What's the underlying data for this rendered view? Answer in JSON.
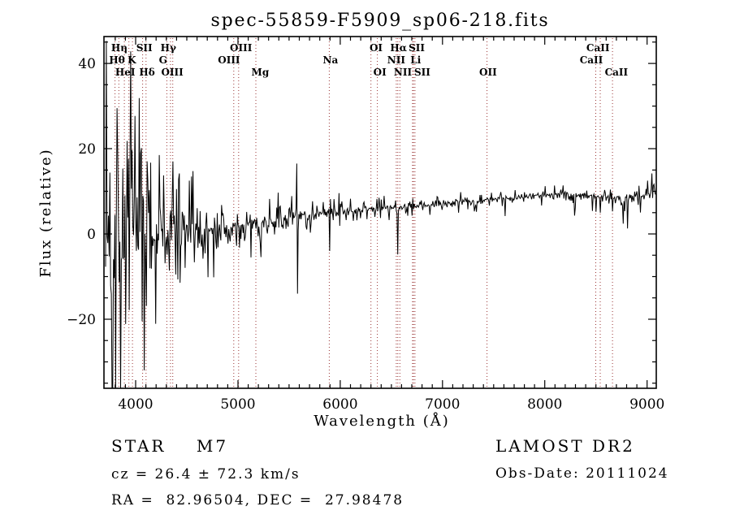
{
  "title": "spec-55859-F5909_sp06-218.fits",
  "footer": {
    "class_label": "STAR    M7",
    "cz": "cz = 26.4 ± 72.3 km/s",
    "coords": "RA =  82.96504, DEC =  27.98478",
    "survey": "LAMOST DR2",
    "obs_date": "Obs-Date: 20111024"
  },
  "colors": {
    "foreground": "#000000",
    "background": "#ffffff",
    "spectral_marker": "#993333"
  },
  "chart_data": {
    "type": "line",
    "title": "spec-55859-F5909_sp06-218.fits",
    "xlabel": "Wavelength (Å)",
    "ylabel": "Flux (relative)",
    "xlim": [
      3690,
      9090
    ],
    "ylim": [
      -36.2,
      46.3
    ],
    "xticks": [
      4000,
      5000,
      6000,
      7000,
      8000,
      9000
    ],
    "xtick_minor_step": 100,
    "yticks": [
      -20,
      0,
      20,
      40
    ],
    "ytick_minor_step": 5,
    "grid": false,
    "legend": null,
    "line_color": "#000000",
    "spectral_line_markers": [
      3798,
      3835,
      3889,
      3934,
      3969,
      4068,
      4101,
      4305,
      4340,
      4363,
      4959,
      5007,
      5175,
      5893,
      6300,
      6363,
      6548,
      6563,
      6583,
      6707,
      6716,
      6731,
      7435,
      8498,
      8542,
      8662
    ],
    "spectral_line_labels": [
      {
        "text": "Hη",
        "row": 1,
        "wavelength": 3840
      },
      {
        "text": "SII",
        "row": 1,
        "wavelength": 4085
      },
      {
        "text": "Hγ",
        "row": 1,
        "wavelength": 4320
      },
      {
        "text": "OIII",
        "row": 1,
        "wavelength": 5030
      },
      {
        "text": "OI",
        "row": 1,
        "wavelength": 6350
      },
      {
        "text": "Hα",
        "row": 1,
        "wavelength": 6570
      },
      {
        "text": "SII",
        "row": 1,
        "wavelength": 6748
      },
      {
        "text": "CaII",
        "row": 1,
        "wavelength": 8520
      },
      {
        "text": "Hθ",
        "row": 2,
        "wavelength": 3818
      },
      {
        "text": "K",
        "row": 2,
        "wavelength": 3962
      },
      {
        "text": "G",
        "row": 2,
        "wavelength": 4268
      },
      {
        "text": "OIII",
        "row": 2,
        "wavelength": 4912
      },
      {
        "text": "Na",
        "row": 2,
        "wavelength": 5905
      },
      {
        "text": "NII",
        "row": 2,
        "wavelength": 6548
      },
      {
        "text": "Li",
        "row": 2,
        "wavelength": 6738
      },
      {
        "text": "CaII",
        "row": 2,
        "wavelength": 8455
      },
      {
        "text": "HeI",
        "row": 3,
        "wavelength": 3898
      },
      {
        "text": "Hδ",
        "row": 3,
        "wavelength": 4112
      },
      {
        "text": "OIII",
        "row": 3,
        "wavelength": 4358
      },
      {
        "text": "Mg",
        "row": 3,
        "wavelength": 5218
      },
      {
        "text": "OI",
        "row": 3,
        "wavelength": 6388
      },
      {
        "text": "NII",
        "row": 3,
        "wavelength": 6612
      },
      {
        "text": "SII",
        "row": 3,
        "wavelength": 6802
      },
      {
        "text": "OII",
        "row": 3,
        "wavelength": 7445
      },
      {
        "text": "CaII",
        "row": 3,
        "wavelength": 8700
      }
    ],
    "spectrum": {
      "seed": 7,
      "step": 7,
      "x_start": 3706,
      "x_end": 9085,
      "baseline": [
        [
          3706,
          -1.5
        ],
        [
          3800,
          -1.0
        ],
        [
          3900,
          -1.0
        ],
        [
          4000,
          -0.5
        ],
        [
          4150,
          0.0
        ],
        [
          4300,
          0.2
        ],
        [
          4500,
          0.4
        ],
        [
          4700,
          0.6
        ],
        [
          4900,
          1.0
        ],
        [
          5100,
          1.8
        ],
        [
          5300,
          2.8
        ],
        [
          5500,
          3.8
        ],
        [
          5700,
          4.6
        ],
        [
          5900,
          5.0
        ],
        [
          6000,
          5.4
        ],
        [
          6150,
          5.2
        ],
        [
          6300,
          6.0
        ],
        [
          6450,
          6.3
        ],
        [
          6600,
          6.2
        ],
        [
          6800,
          6.6
        ],
        [
          7000,
          7.1
        ],
        [
          7200,
          7.5
        ],
        [
          7400,
          7.9
        ],
        [
          7600,
          8.3
        ],
        [
          7800,
          8.7
        ],
        [
          8000,
          9.2
        ],
        [
          8200,
          9.4
        ],
        [
          8400,
          8.9
        ],
        [
          8600,
          8.8
        ],
        [
          8800,
          8.3
        ],
        [
          8950,
          8.9
        ],
        [
          9085,
          9.5
        ]
      ],
      "noise_amp": [
        [
          3706,
          40
        ],
        [
          3800,
          40
        ],
        [
          3870,
          34
        ],
        [
          3950,
          28
        ],
        [
          4000,
          24
        ],
        [
          4060,
          20
        ],
        [
          4150,
          16
        ],
        [
          4250,
          13
        ],
        [
          4400,
          10
        ],
        [
          4550,
          8
        ],
        [
          4700,
          6
        ],
        [
          4850,
          5
        ],
        [
          5000,
          4.2
        ],
        [
          5200,
          3.6
        ],
        [
          5400,
          3.0
        ],
        [
          5600,
          2.6
        ],
        [
          5800,
          2.3
        ],
        [
          6000,
          2.0
        ],
        [
          6200,
          1.8
        ],
        [
          6400,
          1.5
        ],
        [
          6700,
          1.3
        ],
        [
          7000,
          1.1
        ],
        [
          7300,
          1.4
        ],
        [
          7600,
          1.1
        ],
        [
          8000,
          1.2
        ],
        [
          8300,
          1.5
        ],
        [
          8600,
          1.7
        ],
        [
          8900,
          1.8
        ],
        [
          9085,
          2.3
        ]
      ],
      "features": [
        {
          "x": 4047,
          "peak": 19.0
        },
        {
          "x": 4230,
          "peak": 18.5
        },
        {
          "x": 4363,
          "peak": 17.0
        },
        {
          "x": 4545,
          "peak": 13.5
        },
        {
          "x": 5127,
          "peak": -5.5
        },
        {
          "x": 5578,
          "peak": 16.5
        },
        {
          "x": 5585,
          "peak": -14.0
        },
        {
          "x": 5895,
          "peak": -4.0
        },
        {
          "x": 6160,
          "peak": 3.2
        },
        {
          "x": 6565,
          "peak": -4.8
        },
        {
          "x": 6880,
          "peak": 4.5
        },
        {
          "x": 7610,
          "peak": 4.2
        },
        {
          "x": 8294,
          "peak": 4.3
        },
        {
          "x": 8498,
          "peak": 5.2
        },
        {
          "x": 8542,
          "peak": 5.0
        },
        {
          "x": 8662,
          "peak": 5.3
        },
        {
          "x": 8770,
          "peak": 2.4
        },
        {
          "x": 8812,
          "peak": 1.3
        },
        {
          "x": 9005,
          "peak": 12.5
        },
        {
          "x": 9050,
          "peak": 14.2
        }
      ]
    }
  }
}
